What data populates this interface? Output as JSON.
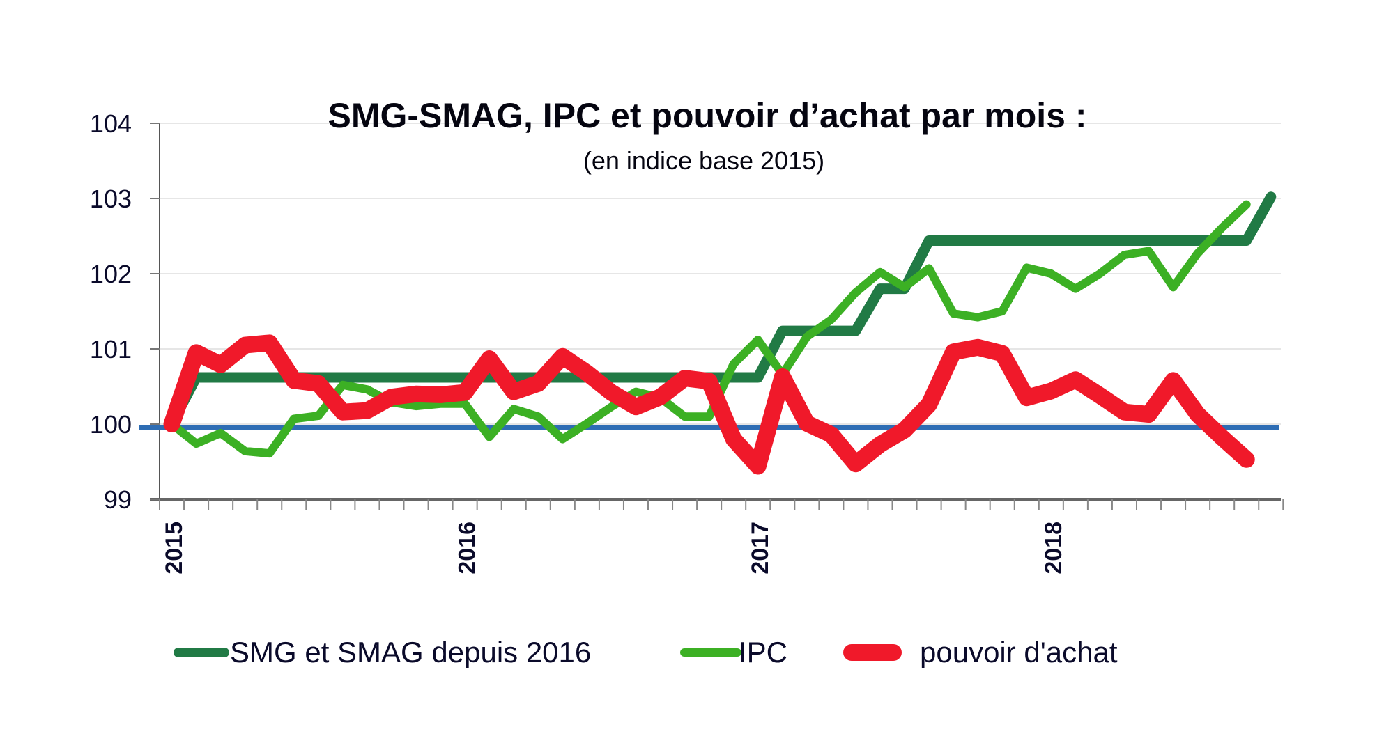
{
  "chart_data": {
    "type": "line",
    "title": "SMG-SMAG, IPC et pouvoir d’achat par mois :",
    "subtitle": "(en indice base 2015)",
    "xlabel": "",
    "ylabel": "",
    "ylim": [
      99,
      104
    ],
    "yticks": [
      "99",
      "100",
      "101",
      "102",
      "103",
      "104"
    ],
    "xtick_labels": [
      "2015",
      "2016",
      "2017",
      "2018"
    ],
    "x_unit": "month",
    "x_start": "2015-01",
    "months_count": 46,
    "grid": true,
    "reference_line": {
      "value": 100,
      "color": "#2e6db4"
    },
    "legend_position": "bottom",
    "series": [
      {
        "name": "SMG et SMAG depuis 2016",
        "color": "#217a45",
        "values": [
          100.0,
          100.62,
          100.62,
          100.62,
          100.62,
          100.62,
          100.62,
          100.62,
          100.62,
          100.62,
          100.62,
          100.62,
          100.62,
          100.62,
          100.62,
          100.62,
          100.62,
          100.62,
          100.62,
          100.62,
          100.62,
          100.62,
          100.62,
          100.62,
          100.62,
          101.24,
          101.24,
          101.24,
          101.24,
          101.8,
          101.8,
          102.44,
          102.44,
          102.44,
          102.44,
          102.44,
          102.44,
          102.44,
          102.44,
          102.44,
          102.44,
          102.44,
          102.44,
          102.44,
          102.44,
          103.02
        ]
      },
      {
        "name": "IPC",
        "color": "#3cb024",
        "values": [
          100.0,
          99.74,
          99.88,
          99.64,
          99.61,
          100.07,
          100.11,
          100.52,
          100.46,
          100.29,
          100.24,
          100.27,
          100.27,
          99.83,
          100.2,
          100.1,
          99.8,
          100.01,
          100.23,
          100.43,
          100.35,
          100.1,
          100.1,
          100.8,
          101.12,
          100.66,
          101.16,
          101.39,
          101.75,
          102.02,
          101.82,
          102.07,
          101.47,
          101.42,
          101.5,
          102.08,
          102.0,
          101.8,
          102.0,
          102.25,
          102.3,
          101.82,
          102.27,
          102.61,
          102.92
        ]
      },
      {
        "name": "pouvoir d'achat",
        "color": "#f0192a",
        "values": [
          100.0,
          100.95,
          100.79,
          101.05,
          101.08,
          100.58,
          100.54,
          100.16,
          100.18,
          100.36,
          100.4,
          100.39,
          100.42,
          100.87,
          100.43,
          100.54,
          100.9,
          100.68,
          100.42,
          100.23,
          100.36,
          100.61,
          100.57,
          99.8,
          99.44,
          100.63,
          100.01,
          99.86,
          99.47,
          99.73,
          99.92,
          100.26,
          100.96,
          101.02,
          100.94,
          100.35,
          100.44,
          100.59,
          100.38,
          100.16,
          100.13,
          100.58,
          100.13,
          99.82,
          99.53
        ]
      }
    ]
  }
}
